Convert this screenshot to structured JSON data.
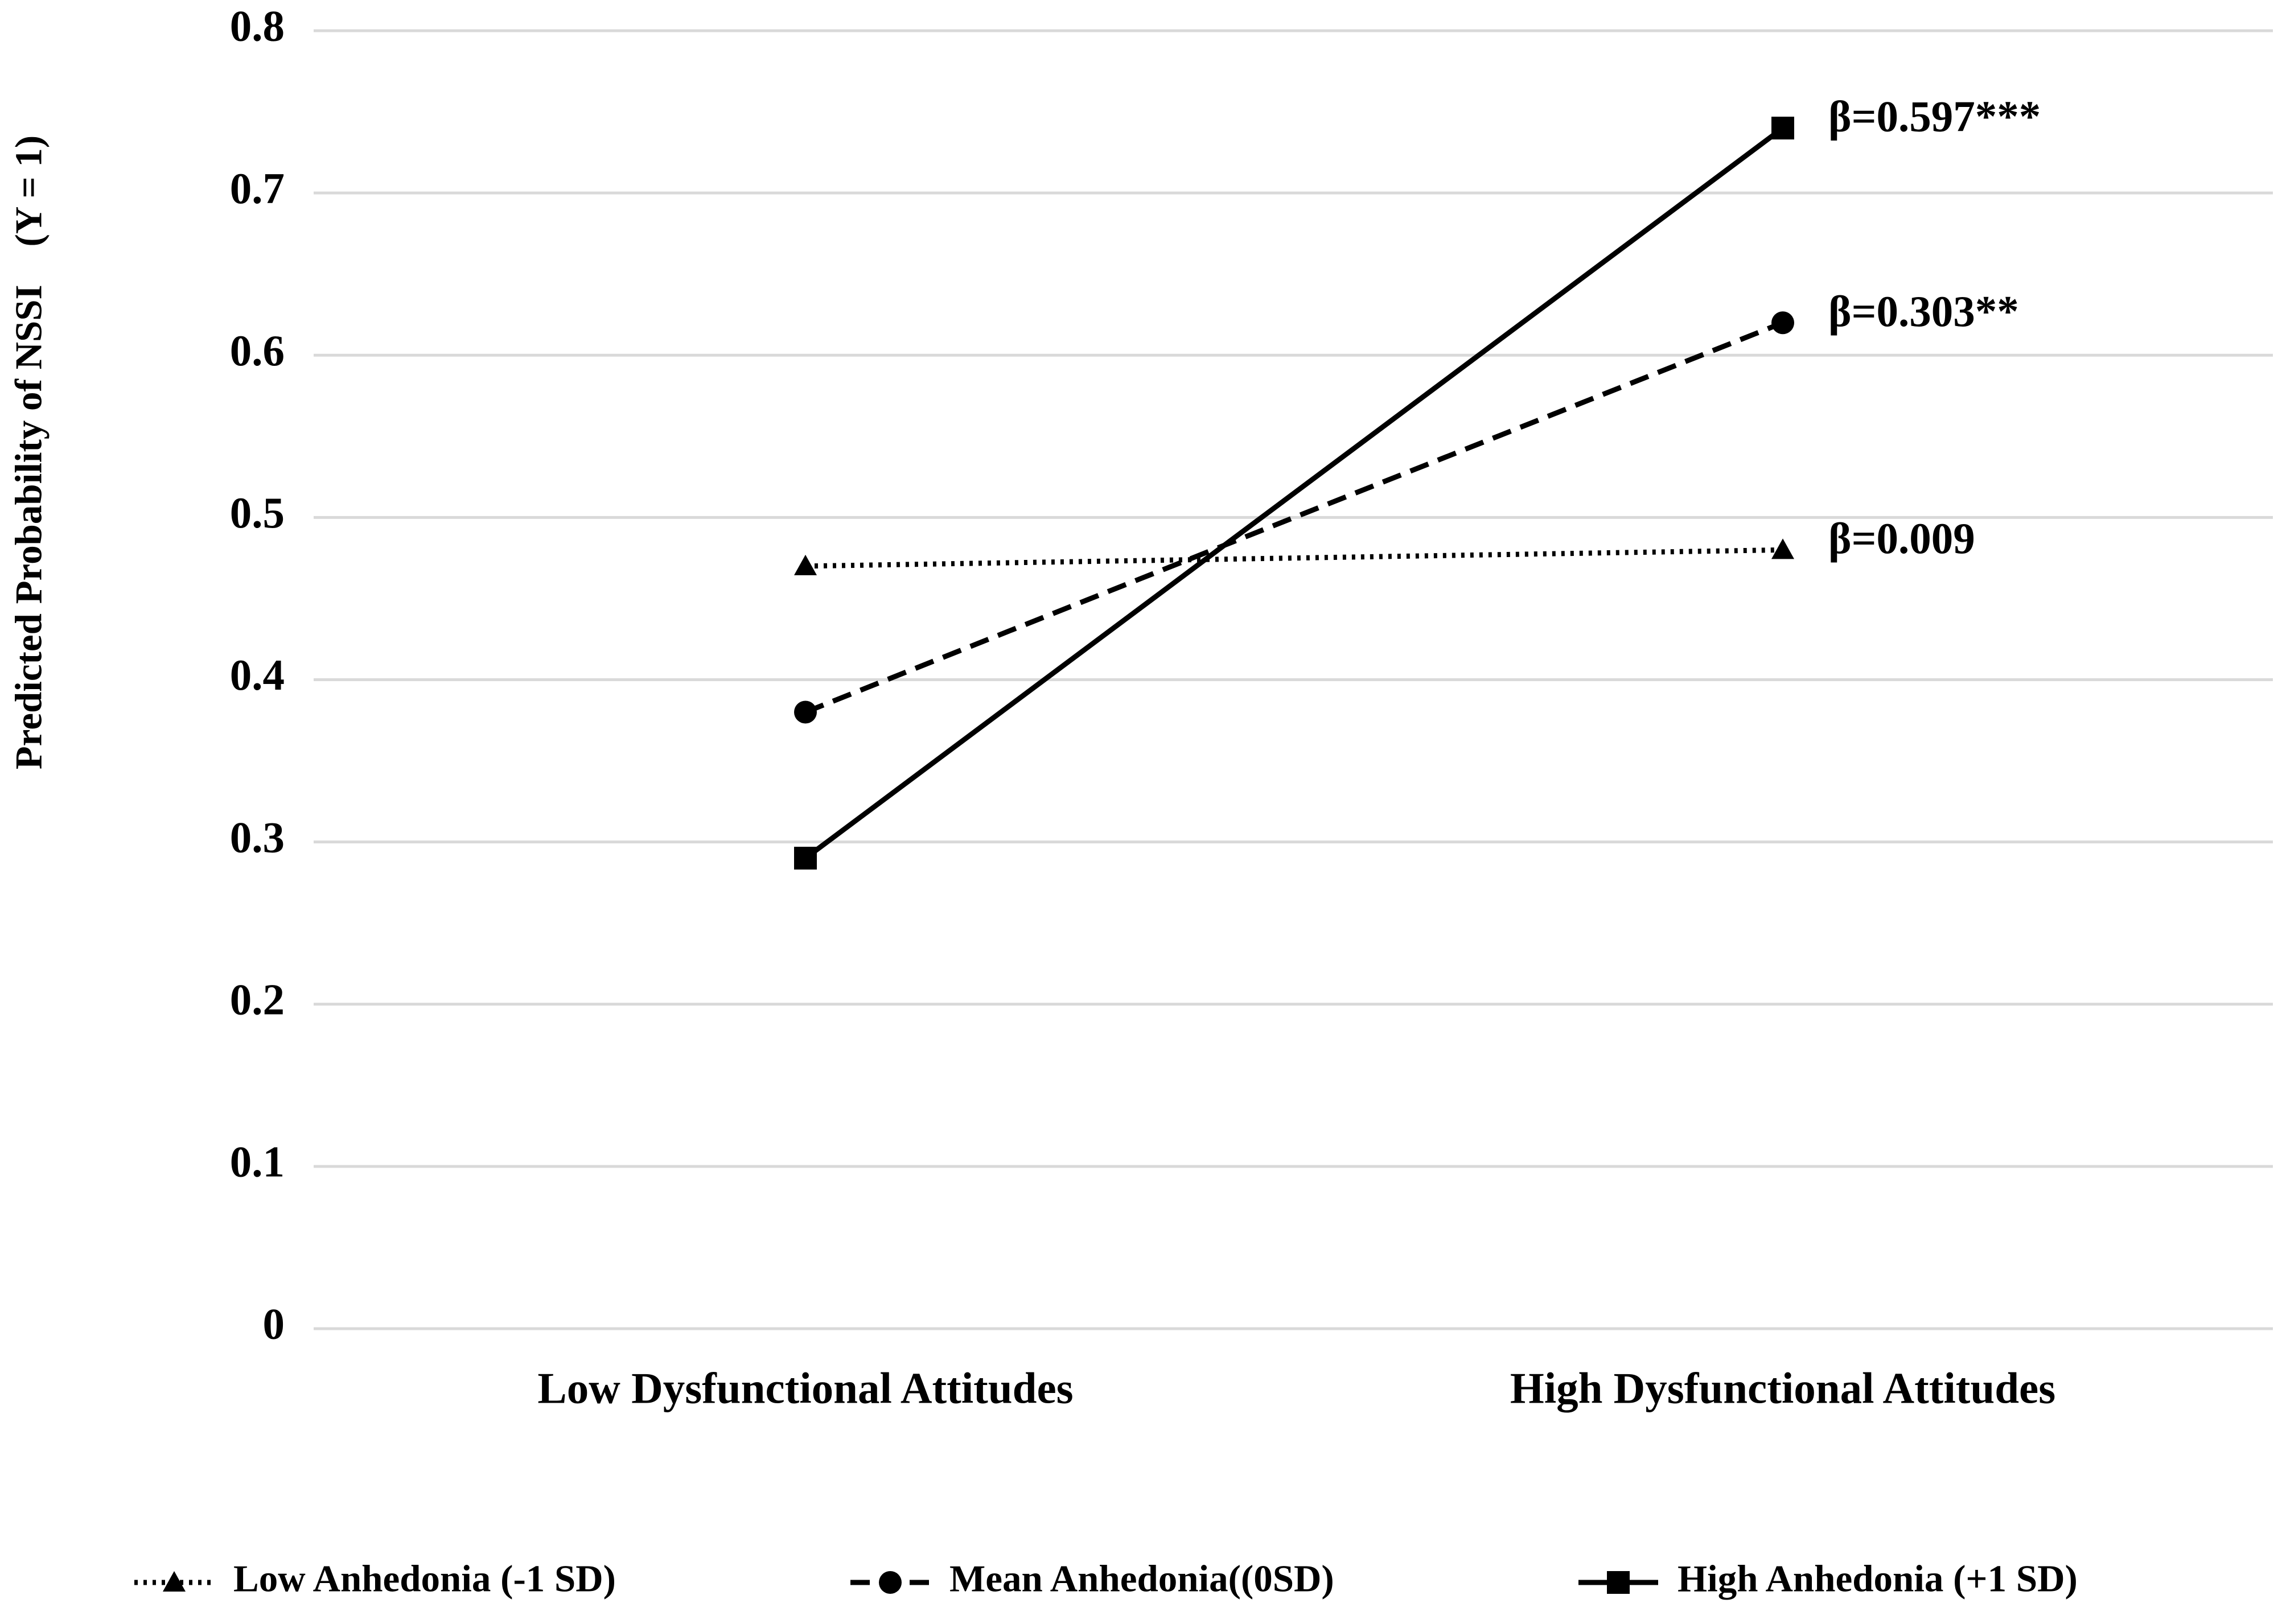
{
  "chart_data": {
    "type": "line",
    "y_label": "Predicted Probability of NSSI    (Y = 1)",
    "categories": [
      "Low Dysfunctional Attitudes",
      "High Dysfunctional Attitudes"
    ],
    "series": [
      {
        "name": "Low Anhedonia (-1 SD)",
        "color": "#000000",
        "dash": "dotted",
        "marker": "triangle",
        "values": [
          0.47,
          0.48
        ],
        "annotation": "β=0.009"
      },
      {
        "name": "Mean Anhedonia((0SD)",
        "color": "#000000",
        "dash": "dashed",
        "marker": "circle",
        "values": [
          0.38,
          0.62
        ],
        "annotation": "β=0.303**"
      },
      {
        "name": "High Anhedonia (+1 SD)",
        "color": "#000000",
        "dash": "solid",
        "marker": "square",
        "values": [
          0.29,
          0.74
        ],
        "annotation": "β=0.597***"
      }
    ],
    "ylim": [
      0,
      0.8
    ],
    "yticks": [
      0,
      0.1,
      0.2,
      0.3,
      0.4,
      0.5,
      0.6,
      0.7,
      0.8
    ],
    "grid": true,
    "legend": "bottom"
  }
}
